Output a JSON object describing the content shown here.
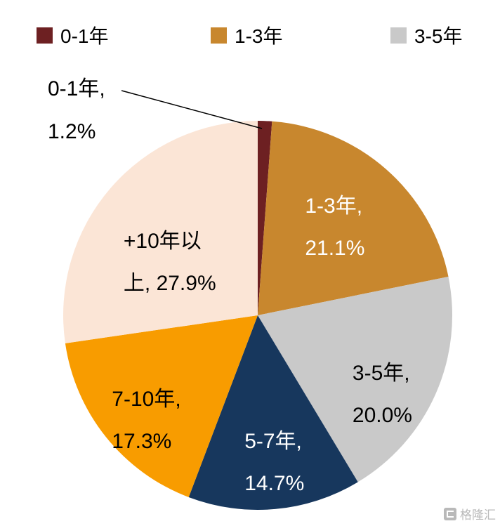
{
  "chart_data": {
    "type": "pie",
    "title": "",
    "legend_position": "top",
    "direction": "clockwise",
    "start_angle_deg": 0,
    "legend_visible_items": [
      "0-1年",
      "1-3年",
      "3-5年"
    ],
    "slices": [
      {
        "name": "0-1年",
        "value": 1.2,
        "color": "#6D2022",
        "label": "0-1年, 1.2%",
        "label_lines": [
          "0-1年,",
          "1.2%"
        ],
        "label_placement": "callout",
        "label_color": "#000000"
      },
      {
        "name": "1-3年",
        "value": 21.1,
        "color": "#C8872E",
        "label": "1-3年, 21.1%",
        "label_lines": [
          "1-3年,",
          "21.1%"
        ],
        "label_placement": "inside",
        "label_color": "#FFFFFF"
      },
      {
        "name": "3-5年",
        "value": 20.0,
        "color": "#C9C9C9",
        "label": "3-5年, 20.0%",
        "label_lines": [
          "3-5年,",
          "20.0%"
        ],
        "label_placement": "inside",
        "label_color": "#000000"
      },
      {
        "name": "5-7年",
        "value": 14.7,
        "color": "#17375D",
        "label": "5-7年, 14.7%",
        "label_lines": [
          "5-7年,",
          "14.7%"
        ],
        "label_placement": "inside",
        "label_color": "#FFFFFF"
      },
      {
        "name": "7-10年",
        "value": 17.3,
        "color": "#F89C00",
        "label": "7-10年, 17.3%",
        "label_lines": [
          "7-10年,",
          "17.3%"
        ],
        "label_placement": "inside",
        "label_color": "#000000"
      },
      {
        "name": "+10年以上",
        "value": 27.9,
        "color": "#FBE5D6",
        "label": "+10年以上, 27.9%",
        "label_lines": [
          "+10年以",
          "上, 27.9%"
        ],
        "label_placement": "inside",
        "label_color": "#000000"
      }
    ]
  },
  "callout": {
    "line1": "0-1年,",
    "line2": "1.2%"
  },
  "watermark": {
    "text": "格隆汇",
    "icon": "gelonghui-logo"
  }
}
